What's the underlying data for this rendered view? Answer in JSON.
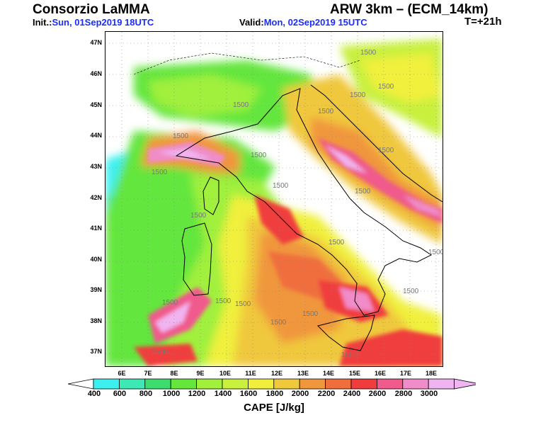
{
  "header": {
    "org": "Consorzio LaMMA",
    "model": "ARW 3km – (ECM_14km)",
    "init_label": "Init.:",
    "init_value": "Sun, 01Sep2019 18UTC",
    "valid_label": "Valid:",
    "valid_value": "Mon, 02Sep2019 15UTC",
    "timestep": "T=+21h"
  },
  "map": {
    "lat_labels": [
      "47N",
      "46N",
      "45N",
      "44N",
      "43N",
      "42N",
      "41N",
      "40N",
      "39N",
      "38N",
      "37N"
    ],
    "lon_labels": [
      "6E",
      "7E",
      "8E",
      "9E",
      "10E",
      "11E",
      "12E",
      "13E",
      "14E",
      "15E",
      "16E",
      "17E",
      "18E"
    ],
    "contour_label": "1500"
  },
  "colorbar": {
    "title": "CAPE [J/kg]",
    "ticks": [
      "400",
      "600",
      "800",
      "1000",
      "1200",
      "1400",
      "1600",
      "1800",
      "2000",
      "2200",
      "2400",
      "2600",
      "2800",
      "3000"
    ],
    "colors": [
      "#3cf0f0",
      "#3ce8b4",
      "#3cdc6e",
      "#64e63c",
      "#a0f03c",
      "#c8f03c",
      "#f0f03c",
      "#f0c83c",
      "#f0963c",
      "#f06e3c",
      "#f03c3c",
      "#f05a8c",
      "#f08cc8",
      "#f0b4f0"
    ]
  }
}
